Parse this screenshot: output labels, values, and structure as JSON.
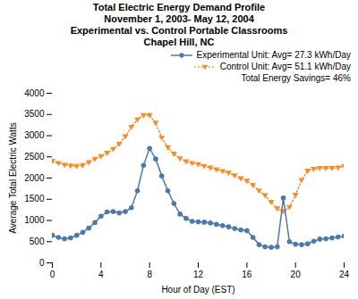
{
  "chart_data": {
    "type": "line",
    "title": "Total Electric Energy Demand Profile\nNovember 1, 2003- May 12, 2004\nExperimental vs. Control Portable Classrooms\nChapel Hill, NC",
    "xlabel": "Hour of Day (EST)",
    "ylabel": "Average Total Electric Watts",
    "x": [
      0.0,
      0.5,
      1.0,
      1.5,
      2.0,
      2.5,
      3.0,
      3.5,
      4.0,
      4.5,
      5.0,
      5.5,
      6.0,
      6.5,
      7.0,
      7.5,
      8.0,
      8.5,
      9.0,
      9.5,
      10.0,
      10.5,
      11.0,
      11.5,
      12.0,
      12.5,
      13.0,
      13.5,
      14.0,
      14.5,
      15.0,
      15.5,
      16.0,
      16.5,
      17.0,
      17.5,
      18.0,
      18.5,
      19.0,
      19.5,
      20.0,
      20.5,
      21.0,
      21.5,
      22.0,
      22.5,
      23.0,
      23.5,
      24.0
    ],
    "series": [
      {
        "name": "Experimental Unit: Avg= 27.3 kWh/Day",
        "marker": "circle",
        "line_style": "solid",
        "values": [
          650,
          600,
          570,
          590,
          650,
          720,
          820,
          950,
          1100,
          1200,
          1210,
          1180,
          1210,
          1300,
          1700,
          2300,
          2700,
          2450,
          2050,
          1700,
          1400,
          1150,
          1050,
          980,
          970,
          960,
          940,
          910,
          880,
          850,
          810,
          780,
          760,
          600,
          430,
          380,
          370,
          380,
          1530,
          500,
          440,
          430,
          450,
          510,
          560,
          570,
          590,
          610,
          630
        ]
      },
      {
        "name": "Control Unit: Avg= 51.1 kWh/Day",
        "marker": "triangle_down",
        "line_style": "dotted",
        "values": [
          2400,
          2350,
          2310,
          2290,
          2280,
          2300,
          2370,
          2450,
          2510,
          2590,
          2680,
          2800,
          2980,
          3200,
          3380,
          3480,
          3480,
          3300,
          2950,
          2720,
          2570,
          2460,
          2390,
          2350,
          2320,
          2280,
          2240,
          2200,
          2160,
          2120,
          2060,
          1990,
          1930,
          1830,
          1700,
          1590,
          1430,
          1280,
          1210,
          1310,
          1600,
          1950,
          2170,
          2210,
          2230,
          2230,
          2230,
          2240,
          2280
        ]
      }
    ],
    "annotations": [
      "Total Energy Savings= 46%"
    ],
    "xlim": [
      0,
      24
    ],
    "ylim": [
      0,
      4000
    ],
    "xticks": [
      0,
      4,
      8,
      12,
      16,
      20,
      24
    ],
    "yticks": [
      0,
      500,
      1000,
      1500,
      2000,
      2500,
      3000,
      3500,
      4000
    ],
    "grid": false,
    "legend": "upper right"
  }
}
